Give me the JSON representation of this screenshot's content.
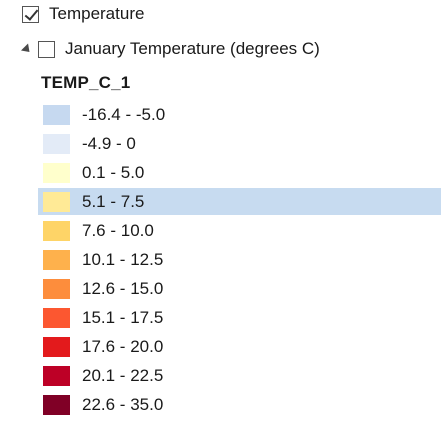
{
  "layer": {
    "name": "Temperature",
    "checked": true
  },
  "sublayer": {
    "name": "January Temperature (degrees C)",
    "checked": false
  },
  "field": {
    "name": "TEMP_C_1"
  },
  "classes": [
    {
      "label": "-16.4 - -5.0",
      "color": "#c6d9f0"
    },
    {
      "label": "-4.9 - 0",
      "color": "#e3ebf7"
    },
    {
      "label": "0.1 - 5.0",
      "color": "#ffffcc"
    },
    {
      "label": "5.1 - 7.5",
      "color": "#ffea96",
      "selected": true
    },
    {
      "label": "7.6 - 10.0",
      "color": "#fed467"
    },
    {
      "label": "10.1 - 12.5",
      "color": "#feb14c"
    },
    {
      "label": "12.6 - 15.0",
      "color": "#fd8d3c"
    },
    {
      "label": "15.1 - 17.5",
      "color": "#fc5730"
    },
    {
      "label": "17.6 - 20.0",
      "color": "#e31a1c"
    },
    {
      "label": "20.1 - 22.5",
      "color": "#bd0026"
    },
    {
      "label": "22.6 - 35.0",
      "color": "#800026"
    }
  ],
  "colors": {
    "selection": "#c7dbf0"
  }
}
